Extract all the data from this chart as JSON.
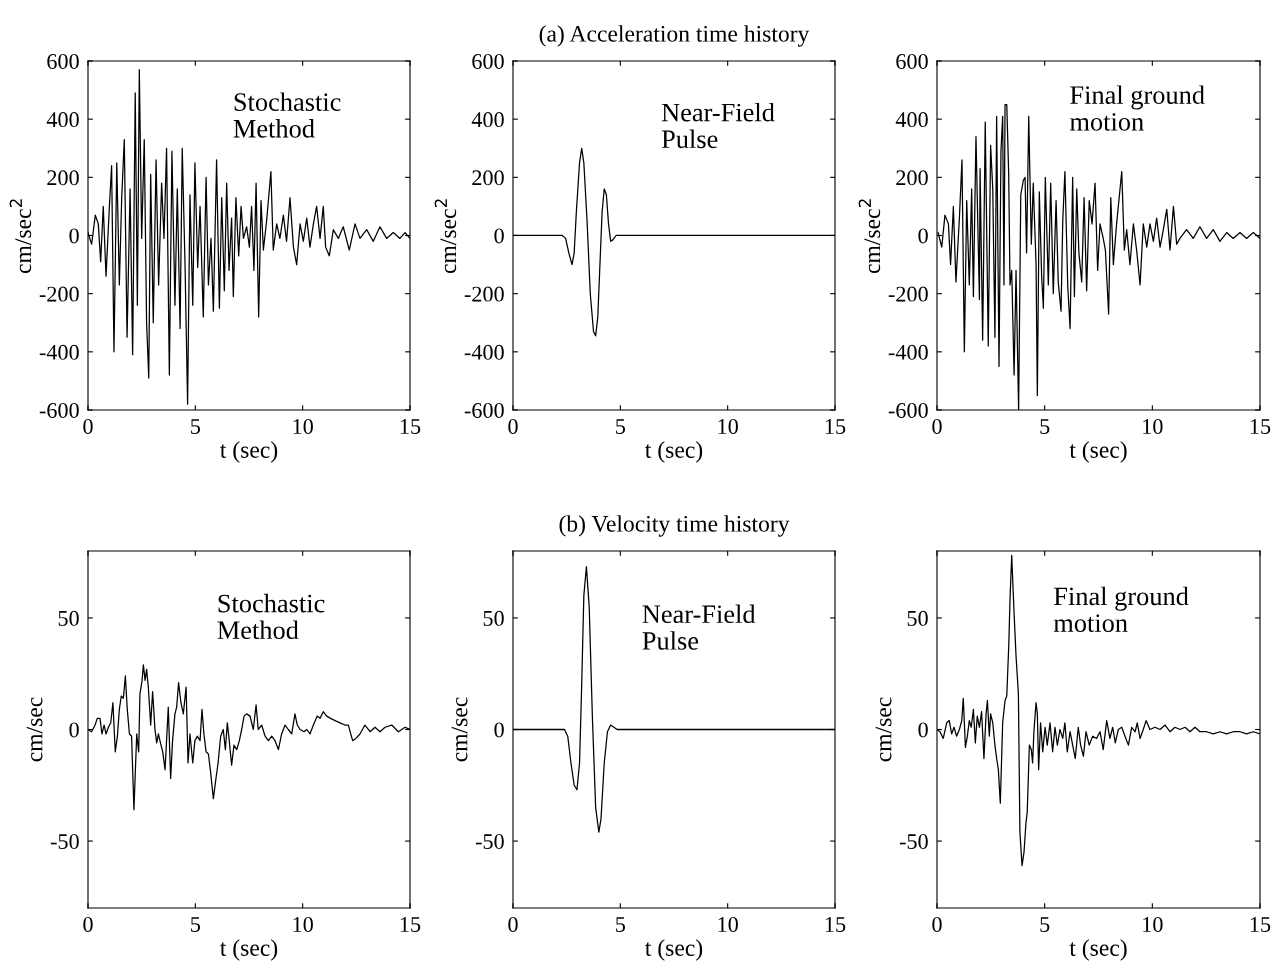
{
  "chart_data": [
    {
      "type": "line",
      "xlabel": "t (sec)",
      "ylabel": "cm/sec$^{2}$",
      "annotations": [
        "Stochastic\nMethod"
      ],
      "xlim": [
        0,
        15
      ],
      "xticks": [
        0,
        5,
        10,
        15
      ],
      "ylim": [
        -600,
        600
      ],
      "yticks": [
        -600,
        -400,
        -200,
        0,
        200,
        400,
        600
      ],
      "series": [
        {
          "color": "#000000",
          "x": [
            0,
            0.17,
            0.34,
            0.48,
            0.59,
            0.71,
            0.84,
            0.99,
            1.1,
            1.21,
            1.34,
            1.46,
            1.57,
            1.69,
            1.82,
            1.96,
            2.08,
            2.2,
            2.3,
            2.39,
            2.5,
            2.62,
            2.73,
            2.83,
            2.92,
            3.04,
            3.17,
            3.29,
            3.43,
            3.54,
            3.66,
            3.79,
            3.91,
            4.05,
            4.16,
            4.29,
            4.39,
            4.52,
            4.64,
            4.75,
            4.88,
            4.98,
            5.11,
            5.22,
            5.37,
            5.5,
            5.61,
            5.73,
            5.84,
            5.99,
            6.12,
            6.23,
            6.35,
            6.46,
            6.57,
            6.69,
            6.77,
            6.89,
            7.02,
            7.13,
            7.24,
            7.39,
            7.52,
            7.62,
            7.73,
            7.83,
            7.95,
            8.06,
            8.17,
            8.32,
            8.52,
            8.63,
            8.79,
            8.94,
            9.1,
            9.25,
            9.41,
            9.57,
            9.72,
            9.88,
            10.03,
            10.19,
            10.34,
            10.5,
            10.65,
            10.81,
            10.96,
            11.07,
            11.24,
            11.43,
            11.66,
            11.89,
            12.17,
            12.44,
            12.67,
            12.98,
            13.29,
            13.6,
            13.91,
            14.22,
            14.53,
            14.77,
            15
          ],
          "values": [
            10,
            -30,
            70,
            40,
            -90,
            100,
            -140,
            90,
            240,
            -400,
            250,
            -170,
            130,
            330,
            -350,
            160,
            -410,
            490,
            -240,
            570,
            -10,
            330,
            -300,
            -490,
            210,
            -300,
            260,
            -170,
            180,
            -10,
            300,
            -480,
            290,
            -240,
            160,
            -320,
            300,
            -100,
            -580,
            140,
            -240,
            250,
            -110,
            100,
            -280,
            200,
            -170,
            -10,
            -260,
            260,
            -250,
            130,
            -190,
            180,
            -120,
            60,
            -210,
            130,
            -70,
            100,
            -10,
            30,
            -40,
            100,
            -120,
            180,
            -280,
            120,
            -50,
            50,
            220,
            -50,
            40,
            -10,
            70,
            -20,
            130,
            -40,
            -100,
            40,
            -20,
            60,
            -40,
            40,
            100,
            -10,
            100,
            -40,
            -70,
            20,
            -10,
            30,
            -50,
            40,
            -10,
            20,
            -20,
            30,
            -10,
            10,
            -10,
            10,
            -10
          ]
        }
      ]
    },
    {
      "type": "line",
      "title": "(a) Acceleration time history",
      "xlabel": "t (sec)",
      "ylabel": "cm/sec$^{2}$",
      "annotations": [
        "Near-Field\nPulse"
      ],
      "xlim": [
        0,
        15
      ],
      "xticks": [
        0,
        5,
        10,
        15
      ],
      "ylim": [
        -600,
        600
      ],
      "yticks": [
        -600,
        -400,
        -200,
        0,
        200,
        400,
        600
      ],
      "series": [
        {
          "color": "#000000",
          "x": [
            0,
            2.3,
            2.45,
            2.6,
            2.75,
            2.85,
            2.95,
            3.1,
            3.2,
            3.3,
            3.45,
            3.6,
            3.75,
            3.85,
            3.95,
            4.05,
            4.15,
            4.25,
            4.35,
            4.45,
            4.55,
            4.65,
            4.8,
            15
          ],
          "values": [
            0,
            0,
            -10,
            -60,
            -100,
            -60,
            80,
            250,
            300,
            250,
            50,
            -200,
            -330,
            -345,
            -280,
            -100,
            80,
            160,
            140,
            40,
            -20,
            -15,
            0,
            0
          ]
        }
      ]
    },
    {
      "type": "line",
      "xlabel": "t (sec)",
      "ylabel": "cm/sec$^{2}$",
      "annotations": [
        "Final ground\nmotion"
      ],
      "xlim": [
        0,
        15
      ],
      "xticks": [
        0,
        5,
        10,
        15
      ],
      "ylim": [
        -600,
        600
      ],
      "yticks": [
        -600,
        -400,
        -200,
        0,
        200,
        400,
        600
      ],
      "series": [
        {
          "color": "#000000",
          "x": [
            0.05,
            0.22,
            0.37,
            0.53,
            0.63,
            0.76,
            0.88,
            1.04,
            1.16,
            1.27,
            1.38,
            1.5,
            1.61,
            1.69,
            1.81,
            1.97,
            2.0,
            2.12,
            2.24,
            2.38,
            2.49,
            2.59,
            2.69,
            2.77,
            2.88,
            2.97,
            3.05,
            3.11,
            3.16,
            3.24,
            3.33,
            3.39,
            3.47,
            3.58,
            3.67,
            3.79,
            3.89,
            4.01,
            4.09,
            4.16,
            4.26,
            4.38,
            4.47,
            4.6,
            4.66,
            4.75,
            4.86,
            4.94,
            5.03,
            5.17,
            5.28,
            5.4,
            5.53,
            5.63,
            5.76,
            5.84,
            5.94,
            6.07,
            6.18,
            6.3,
            6.38,
            6.49,
            6.59,
            6.72,
            6.83,
            6.95,
            7.07,
            7.2,
            7.34,
            7.46,
            7.57,
            7.72,
            7.82,
            7.97,
            8.07,
            8.19,
            8.34,
            8.58,
            8.7,
            8.81,
            8.96,
            9.12,
            9.27,
            9.43,
            9.58,
            9.74,
            9.89,
            10.05,
            10.2,
            10.36,
            10.51,
            10.67,
            10.82,
            10.98,
            11.13,
            11.28,
            11.59,
            11.9,
            12.21,
            12.52,
            12.83,
            13.14,
            13.45,
            13.76,
            14.07,
            14.38,
            14.69,
            15
          ],
          "values": [
            10,
            -40,
            70,
            40,
            -100,
            100,
            -160,
            60,
            260,
            -400,
            120,
            -170,
            160,
            -210,
            340,
            -220,
            230,
            -360,
            390,
            -380,
            310,
            160,
            -350,
            410,
            -450,
            290,
            410,
            -170,
            450,
            450,
            210,
            -170,
            -120,
            -480,
            -120,
            -600,
            140,
            190,
            200,
            -60,
            410,
            -30,
            180,
            -100,
            -550,
            150,
            -140,
            -250,
            200,
            -170,
            180,
            -200,
            120,
            -160,
            -260,
            50,
            220,
            -170,
            -320,
            200,
            -210,
            160,
            -60,
            -160,
            130,
            -190,
            120,
            40,
            180,
            -120,
            40,
            -10,
            -50,
            -270,
            130,
            -100,
            40,
            220,
            -50,
            20,
            -100,
            40,
            -50,
            -170,
            40,
            -40,
            40,
            -20,
            60,
            -40,
            20,
            90,
            -50,
            100,
            -30,
            -10,
            20,
            -10,
            30,
            -10,
            20,
            -20,
            10,
            -10,
            10,
            -10,
            10,
            -10
          ]
        }
      ]
    },
    {
      "type": "line",
      "xlabel": "t (sec)",
      "ylabel": "cm/sec",
      "annotations": [
        "Stochastic\nMethod"
      ],
      "xlim": [
        0,
        15
      ],
      "xticks": [
        0,
        5,
        10,
        15
      ],
      "ylim": [
        -80,
        80
      ],
      "yticks": [
        -50,
        0,
        50
      ],
      "series": [
        {
          "color": "#000000",
          "x": [
            0,
            0.17,
            0.33,
            0.43,
            0.56,
            0.65,
            0.75,
            0.84,
            0.95,
            1.06,
            1.16,
            1.27,
            1.37,
            1.46,
            1.55,
            1.65,
            1.74,
            1.83,
            1.93,
            2.03,
            2.14,
            2.27,
            2.36,
            2.42,
            2.52,
            2.58,
            2.66,
            2.73,
            2.81,
            2.92,
            3.01,
            3.12,
            3.2,
            3.28,
            3.35,
            3.48,
            3.59,
            3.67,
            3.74,
            3.85,
            3.94,
            4.05,
            4.13,
            4.22,
            4.33,
            4.44,
            4.57,
            4.66,
            4.75,
            4.88,
            4.98,
            5.09,
            5.22,
            5.31,
            5.4,
            5.5,
            5.61,
            5.71,
            5.84,
            5.96,
            6.06,
            6.18,
            6.3,
            6.4,
            6.49,
            6.58,
            6.69,
            6.8,
            6.93,
            7.05,
            7.16,
            7.27,
            7.39,
            7.55,
            7.7,
            7.83,
            7.93,
            8.09,
            8.25,
            8.4,
            8.56,
            8.71,
            8.87,
            9.02,
            9.18,
            9.33,
            9.49,
            9.64,
            9.75,
            9.88,
            10.06,
            10.19,
            10.34,
            10.5,
            10.68,
            10.81,
            10.96,
            11.12,
            11.3,
            11.51,
            11.74,
            11.97,
            12.13,
            12.24,
            12.33,
            12.48,
            12.67,
            12.9,
            13.14,
            13.37,
            13.6,
            13.84,
            14.15,
            14.46,
            14.77,
            15
          ],
          "values": [
            0,
            -1,
            2,
            5,
            5,
            -2,
            2,
            -2,
            1,
            3,
            12,
            -10,
            -3,
            9,
            15,
            14,
            24,
            9,
            -2,
            -3,
            -36,
            -2,
            -10,
            16,
            22,
            29,
            22,
            27,
            19,
            2,
            17,
            0,
            -6,
            -2,
            -5,
            -10,
            -18,
            -3,
            10,
            -22,
            -5,
            7,
            10,
            21,
            12,
            7,
            19,
            -15,
            -2,
            -15,
            -5,
            -3,
            -5,
            9,
            -2,
            -10,
            -11,
            -19,
            -31,
            -22,
            -15,
            -3,
            0,
            -9,
            3,
            -5,
            -16,
            -7,
            -9,
            -5,
            0,
            6,
            7,
            6,
            0,
            11,
            0,
            2,
            -3,
            -5,
            -3,
            -5,
            -9,
            -2,
            2,
            0,
            -2,
            7,
            2,
            0,
            -1,
            0,
            -2,
            2,
            6,
            5,
            8,
            6,
            5,
            4,
            3,
            2,
            2,
            -2,
            -5,
            -4,
            -2,
            2,
            -1,
            1,
            -1,
            1,
            2,
            -1,
            1,
            0
          ]
        }
      ]
    },
    {
      "type": "line",
      "title": "(b) Velocity time history",
      "xlabel": "t (sec)",
      "ylabel": "cm/sec",
      "annotations": [
        "Near-Field\nPulse"
      ],
      "xlim": [
        0,
        15
      ],
      "xticks": [
        0,
        5,
        10,
        15
      ],
      "ylim": [
        -80,
        80
      ],
      "yticks": [
        -50,
        0,
        50
      ],
      "series": [
        {
          "color": "#000000",
          "x": [
            0,
            2.4,
            2.55,
            2.7,
            2.85,
            2.98,
            3.1,
            3.2,
            3.3,
            3.42,
            3.55,
            3.7,
            3.85,
            4.0,
            4.1,
            4.25,
            4.4,
            4.55,
            4.7,
            4.85,
            15
          ],
          "values": [
            0,
            0,
            -3,
            -15,
            -25,
            -27,
            -15,
            20,
            60,
            73,
            55,
            5,
            -35,
            -46,
            -40,
            -15,
            -1,
            2,
            1,
            0,
            0
          ]
        }
      ]
    },
    {
      "type": "line",
      "xlabel": "t (sec)",
      "ylabel": "cm/sec",
      "annotations": [
        "Final ground\nmotion"
      ],
      "xlim": [
        0,
        15
      ],
      "xticks": [
        0,
        5,
        10,
        15
      ],
      "ylim": [
        -80,
        80
      ],
      "yticks": [
        -50,
        0,
        50
      ],
      "series": [
        {
          "color": "#000000",
          "x": [
            0,
            0.14,
            0.29,
            0.45,
            0.57,
            0.68,
            0.79,
            0.91,
            1.04,
            1.15,
            1.22,
            1.32,
            1.41,
            1.5,
            1.59,
            1.69,
            1.78,
            1.87,
            1.97,
            2.07,
            2.18,
            2.28,
            2.34,
            2.43,
            2.49,
            2.59,
            2.69,
            2.77,
            2.85,
            2.94,
            3.05,
            3.16,
            3.24,
            3.33,
            3.39,
            3.47,
            3.58,
            3.67,
            3.78,
            3.85,
            3.95,
            4.04,
            4.13,
            4.19,
            4.29,
            4.38,
            4.44,
            4.5,
            4.6,
            4.66,
            4.72,
            4.81,
            4.91,
            5.02,
            5.12,
            5.25,
            5.37,
            5.48,
            5.59,
            5.71,
            5.84,
            5.94,
            6.05,
            6.18,
            6.3,
            6.42,
            6.56,
            6.67,
            6.8,
            6.92,
            7.07,
            7.23,
            7.41,
            7.57,
            7.72,
            7.88,
            8.03,
            8.16,
            8.28,
            8.42,
            8.58,
            8.73,
            8.89,
            9.04,
            9.2,
            9.3,
            9.43,
            9.58,
            9.71,
            9.89,
            10.12,
            10.36,
            10.59,
            10.82,
            11.05,
            11.28,
            11.52,
            11.75,
            11.98,
            12.21,
            12.52,
            12.83,
            13.14,
            13.45,
            13.76,
            14.07,
            14.38,
            14.69,
            15
          ],
          "values": [
            0,
            -1,
            -4,
            3,
            4,
            -2,
            1,
            -3,
            0,
            4,
            14,
            -8,
            -3,
            4,
            1,
            9,
            -6,
            6,
            1,
            8,
            -13,
            7,
            13,
            -3,
            7,
            3,
            -7,
            -13,
            -18,
            -33,
            3,
            13,
            15,
            37,
            58,
            78,
            52,
            33,
            16,
            -46,
            -61,
            -55,
            -42,
            -37,
            -7,
            -9,
            -15,
            -1,
            12,
            7,
            -18,
            3,
            -10,
            1,
            -7,
            3,
            -10,
            1,
            -7,
            0,
            -4,
            3,
            -10,
            -1,
            -7,
            -13,
            1,
            -7,
            -12,
            -1,
            -7,
            -3,
            -4,
            -1,
            -9,
            4,
            -4,
            1,
            -6,
            0,
            1,
            -3,
            -7,
            1,
            -1,
            3,
            -4,
            0,
            4,
            0,
            1,
            0,
            2,
            -1,
            1,
            0,
            1,
            -1,
            1,
            -1,
            -1,
            -2,
            -1,
            -2,
            -1,
            -1,
            -2,
            -1,
            -2
          ]
        }
      ]
    }
  ]
}
